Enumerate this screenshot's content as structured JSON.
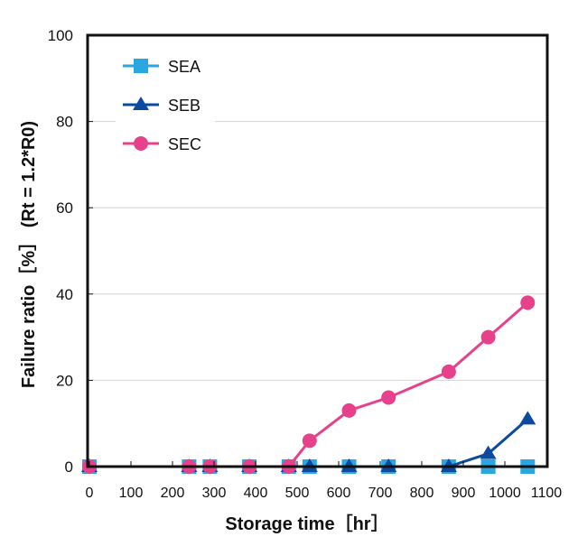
{
  "chart_data": {
    "type": "line",
    "title": "",
    "xlabel": "Storage time［hr］",
    "ylabel": "Failure ratio［%］ (Rt = 1.2*R0)",
    "xlim": [
      0,
      1100
    ],
    "ylim": [
      0,
      100
    ],
    "xticks": [
      "0",
      "100",
      "200",
      "300",
      "400",
      "500",
      "600",
      "700",
      "800",
      "900",
      "1000",
      "1100"
    ],
    "yticks": [
      "0",
      "20",
      "40",
      "60",
      "80",
      "100"
    ],
    "grid": "horizontal",
    "legend_position": "top-left",
    "series": [
      {
        "name": "SEA",
        "marker": "square",
        "color": "#2aa7e0",
        "x": [
          0,
          240,
          290,
          385,
          480,
          530,
          625,
          720,
          865,
          960,
          1055
        ],
        "y": [
          0,
          0,
          0,
          0,
          0,
          0,
          0,
          0,
          0,
          0,
          0
        ]
      },
      {
        "name": "SEB",
        "marker": "triangle",
        "color": "#0b4a9e",
        "x": [
          0,
          240,
          290,
          385,
          480,
          530,
          625,
          720,
          865,
          960,
          1055
        ],
        "y": [
          0,
          0,
          0,
          0,
          0,
          0,
          0,
          0,
          0,
          3,
          11
        ]
      },
      {
        "name": "SEC",
        "marker": "circle",
        "color": "#e8418b",
        "x": [
          0,
          240,
          290,
          385,
          480,
          530,
          625,
          720,
          865,
          960,
          1055
        ],
        "y": [
          0,
          0,
          0,
          0,
          0,
          6,
          13,
          16,
          22,
          30,
          38
        ]
      }
    ]
  }
}
